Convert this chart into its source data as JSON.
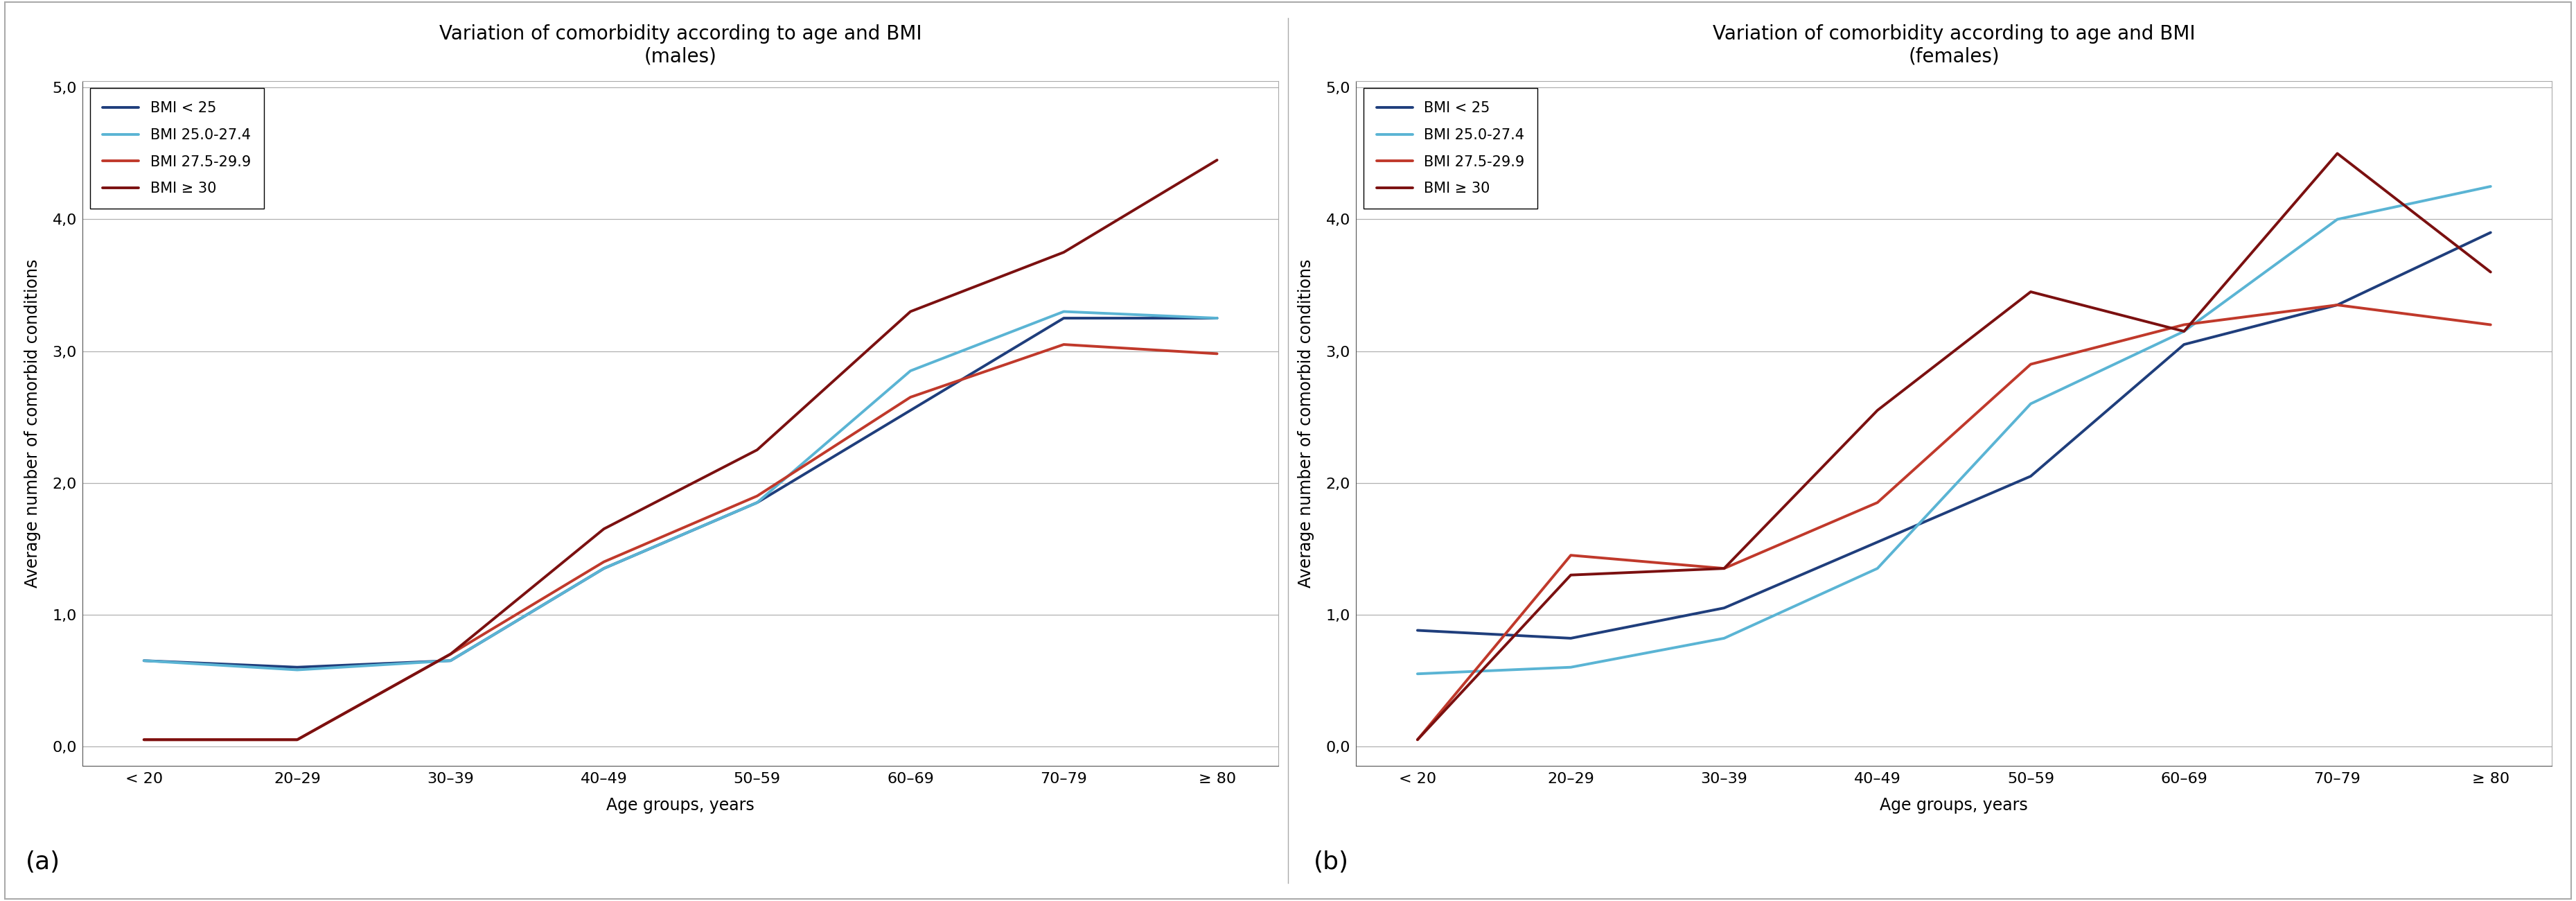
{
  "x_labels": [
    "< 20",
    "20–29",
    "30–39",
    "40–49",
    "50–59",
    "60–69",
    "70–79",
    "≥ 80"
  ],
  "males": {
    "title": "Variation of comorbidity according to age and BMI\n(males)",
    "bmi_lt25": [
      0.65,
      0.6,
      0.65,
      1.35,
      1.85,
      2.55,
      3.25,
      3.25
    ],
    "bmi_25_27": [
      0.65,
      0.58,
      0.65,
      1.35,
      1.85,
      2.85,
      3.3,
      3.25
    ],
    "bmi_27_29": [
      0.05,
      0.05,
      0.7,
      1.4,
      1.9,
      2.65,
      3.05,
      2.98
    ],
    "bmi_ge30": [
      0.05,
      0.05,
      0.7,
      1.65,
      2.25,
      3.3,
      3.75,
      4.45
    ]
  },
  "females": {
    "title": "Variation of comorbidity according to age and BMI\n(females)",
    "bmi_lt25": [
      0.88,
      0.82,
      1.05,
      1.55,
      2.05,
      3.05,
      3.35,
      3.9
    ],
    "bmi_25_27": [
      0.55,
      0.6,
      0.82,
      1.35,
      2.6,
      3.15,
      4.0,
      4.25
    ],
    "bmi_27_29": [
      0.05,
      1.45,
      1.35,
      1.85,
      2.9,
      3.2,
      3.35,
      3.2
    ],
    "bmi_ge30": [
      0.05,
      1.3,
      1.35,
      2.55,
      3.45,
      3.15,
      4.5,
      3.6
    ]
  },
  "colors": {
    "bmi_lt25": "#1f3e7c",
    "bmi_25_27": "#5ab4d4",
    "bmi_27_29": "#c0392b",
    "bmi_ge30": "#7b1010"
  },
  "legend_labels": [
    "BMI < 25",
    "BMI 25.0-27.4",
    "BMI 27.5-29.9",
    "BMI ≥ 30"
  ],
  "ylabel": "Average number of comorbid conditions",
  "xlabel": "Age groups, years",
  "ylim": [
    -0.15,
    5.05
  ],
  "yticks": [
    0.0,
    1.0,
    2.0,
    3.0,
    4.0,
    5.0
  ],
  "ytick_labels": [
    "0,0",
    "1,0",
    "2,0",
    "3,0",
    "4,0",
    "5,0"
  ],
  "panel_labels": [
    "(a)",
    "(b)"
  ],
  "background_color": "#ffffff",
  "grid_color": "#b0b0b0",
  "title_fontsize": 20,
  "label_fontsize": 17,
  "tick_fontsize": 16,
  "legend_fontsize": 15,
  "line_width": 2.8,
  "panel_label_fontsize": 26
}
